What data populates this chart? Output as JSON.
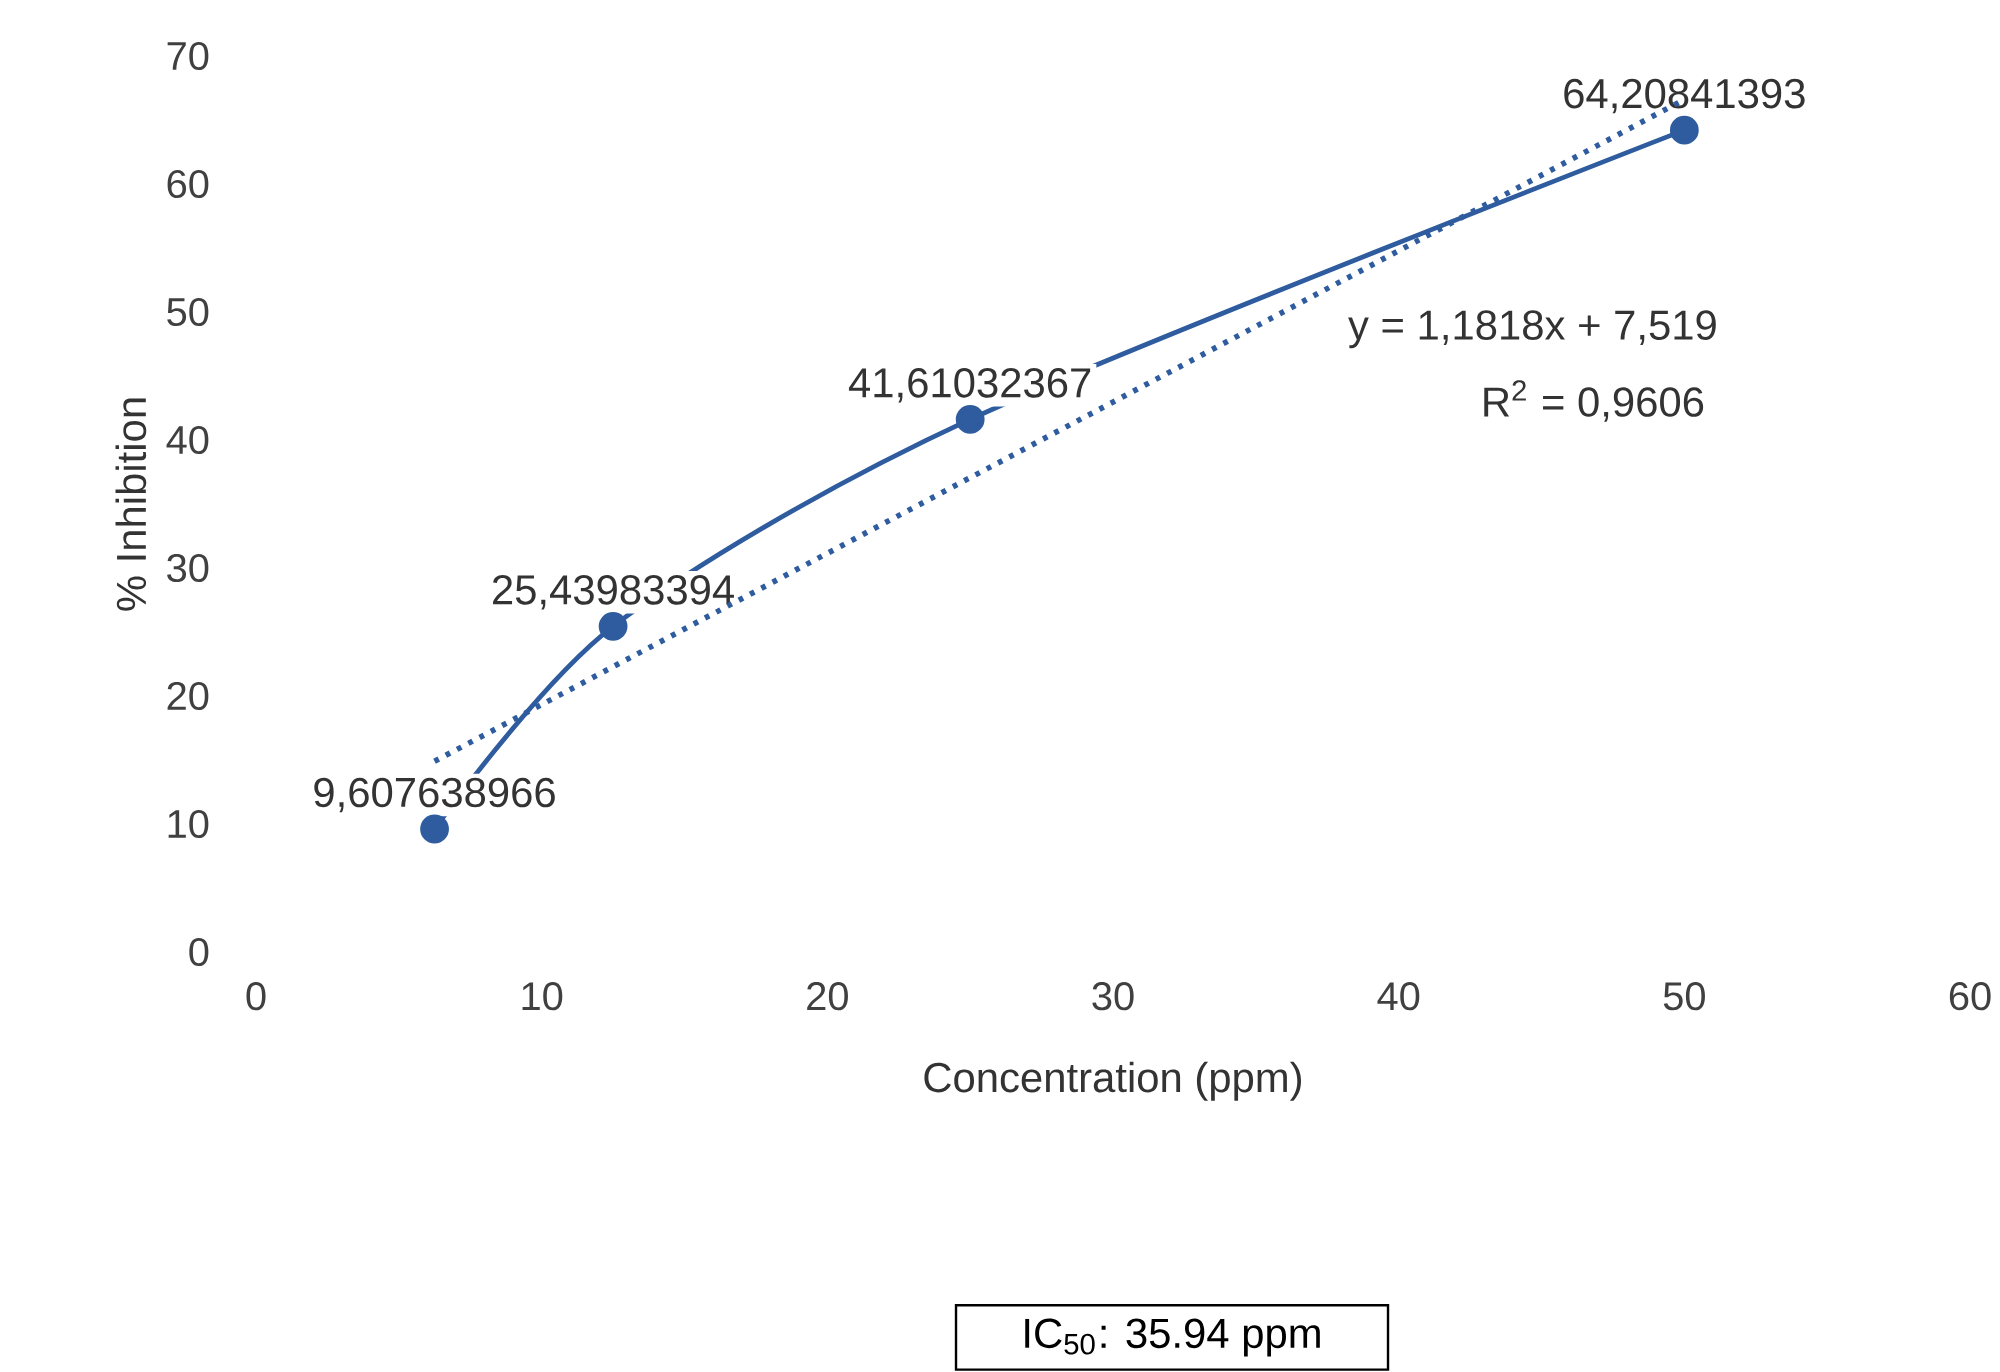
{
  "chart_data": {
    "type": "line",
    "xlabel": "Concentration  (ppm)",
    "ylabel": "% Inhibition",
    "xlim": [
      0,
      60
    ],
    "ylim": [
      0,
      70
    ],
    "xticks": [
      0,
      10,
      20,
      30,
      40,
      50,
      60
    ],
    "yticks": [
      0,
      10,
      20,
      30,
      40,
      50,
      60,
      70
    ],
    "series": [
      {
        "color": "#2e5c9e",
        "marker": "circle",
        "line_style": "solid",
        "x": [
          6.25,
          12.5,
          25,
          50
        ],
        "values": [
          9.607638966,
          25.43983394,
          41.61032367,
          64.20841393
        ],
        "value_labels": [
          "9,607638966",
          "25,43983394",
          "41,61032367",
          "64,20841393"
        ]
      },
      {
        "color": "#2e5c9e",
        "marker": "none",
        "line_style": "dotted",
        "x": [
          6.25,
          50
        ],
        "values": [
          14.9,
          66.6
        ]
      }
    ],
    "annotations": [
      "y = 1,1818x + 7,519",
      "R$^{2}$ = 0,9606",
      "IC$_{50}$: 35.94 ppm"
    ]
  }
}
